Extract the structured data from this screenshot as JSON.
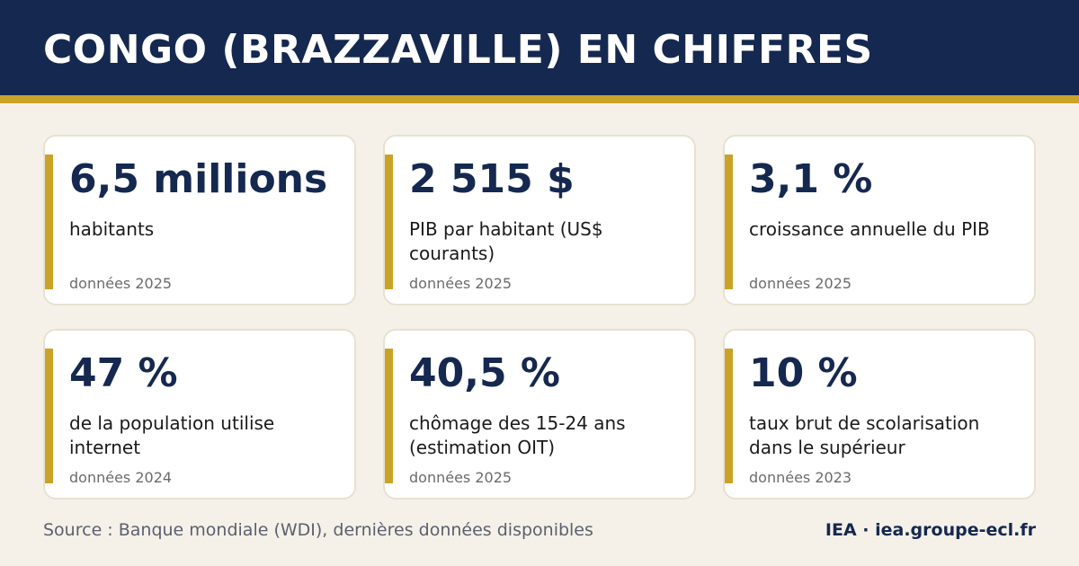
{
  "header": {
    "title": "CONGO (BRAZZAVILLE) EN CHIFFRES"
  },
  "colors": {
    "navy": "#15284f",
    "gold": "#c9a227",
    "background": "#f5f1e8"
  },
  "cards": [
    {
      "value": "6,5 millions",
      "label": "habitants",
      "year": "données 2025"
    },
    {
      "value": "2 515 $",
      "label": "PIB par habitant (US$ courants)",
      "year": "données 2025"
    },
    {
      "value": "3,1 %",
      "label": "croissance annuelle du PIB",
      "year": "données 2025"
    },
    {
      "value": "47 %",
      "label": "de la population utilise internet",
      "year": "données 2024"
    },
    {
      "value": "40,5 %",
      "label": "chômage des 15-24 ans (estimation OIT)",
      "year": "données 2025"
    },
    {
      "value": "10 %",
      "label": "taux brut de scolarisation dans le supérieur",
      "year": "données 2023"
    }
  ],
  "footer": {
    "source": "Source : Banque mondiale (WDI), dernières données disponibles",
    "brand": "IEA · iea.groupe-ecl.fr"
  }
}
